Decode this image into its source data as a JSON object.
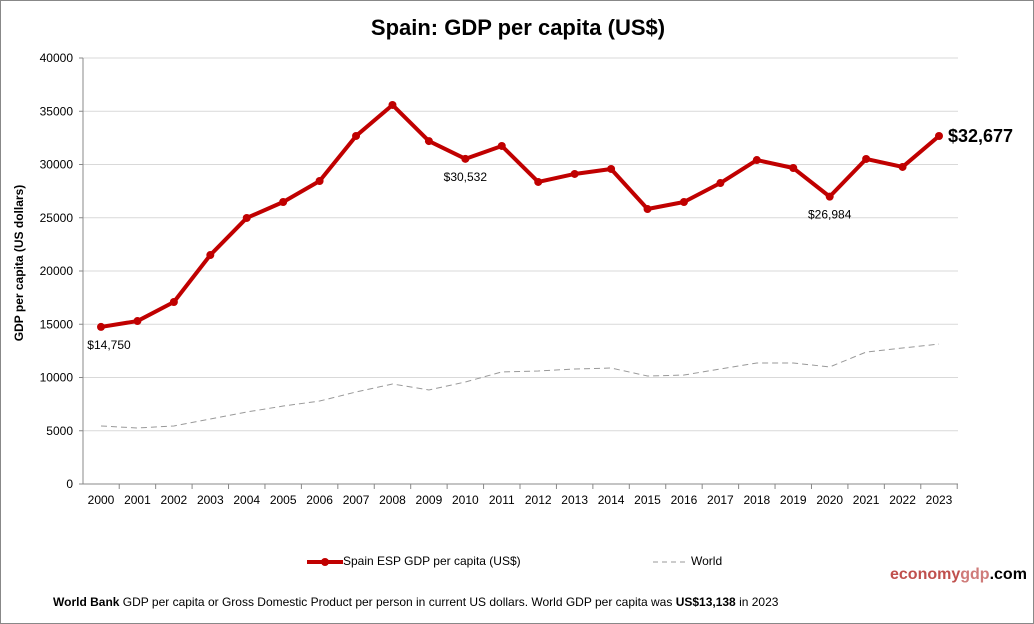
{
  "chart_data": {
    "type": "line",
    "title": "Spain: GDP per capita (US$)",
    "ylabel": "GDP per capita (US dollars)",
    "xlabel": "",
    "ylim": [
      0,
      40000
    ],
    "yticks": [
      0,
      5000,
      10000,
      15000,
      20000,
      25000,
      30000,
      35000,
      40000
    ],
    "grid": true,
    "legend_position": "bottom",
    "x": [
      "2000",
      "2001",
      "2002",
      "2003",
      "2004",
      "2005",
      "2006",
      "2007",
      "2008",
      "2009",
      "2010",
      "2011",
      "2012",
      "2013",
      "2014",
      "2015",
      "2016",
      "2017",
      "2018",
      "2019",
      "2020",
      "2021",
      "2022",
      "2023"
    ],
    "series": [
      {
        "name": "Spain ESP GDP per capita (US$)",
        "color": "#c00000",
        "style": "solid-markers",
        "values": [
          14750,
          15300,
          17090,
          21500,
          24980,
          26480,
          28450,
          32680,
          35590,
          32200,
          30532,
          31740,
          28360,
          29110,
          29580,
          25820,
          26480,
          28260,
          30420,
          29670,
          26984,
          30520,
          29770,
          32677
        ]
      },
      {
        "name": "World",
        "color": "#999999",
        "style": "dashed",
        "values": [
          5450,
          5260,
          5450,
          6100,
          6760,
          7320,
          7790,
          8640,
          9390,
          8830,
          9580,
          10520,
          10610,
          10800,
          10890,
          10140,
          10230,
          10800,
          11360,
          11360,
          10990,
          12390,
          12770,
          13138
        ]
      }
    ],
    "annotations": [
      {
        "year": "2000",
        "text": "$14,750"
      },
      {
        "year": "2010",
        "text": "$30,532"
      },
      {
        "year": "2020",
        "text": "$26,984"
      },
      {
        "year": "2023",
        "text": "$32,677"
      }
    ]
  },
  "brand": {
    "part1": "economy",
    "part2": "gdp",
    "part3": ".com"
  },
  "footer": {
    "bold1": "World Bank",
    "text1": " GDP per capita or Gross Domestic Product per person  in current US dollars.   World GDP per capita was ",
    "bold2": "US$13,138",
    "text2": "  in 2023"
  }
}
